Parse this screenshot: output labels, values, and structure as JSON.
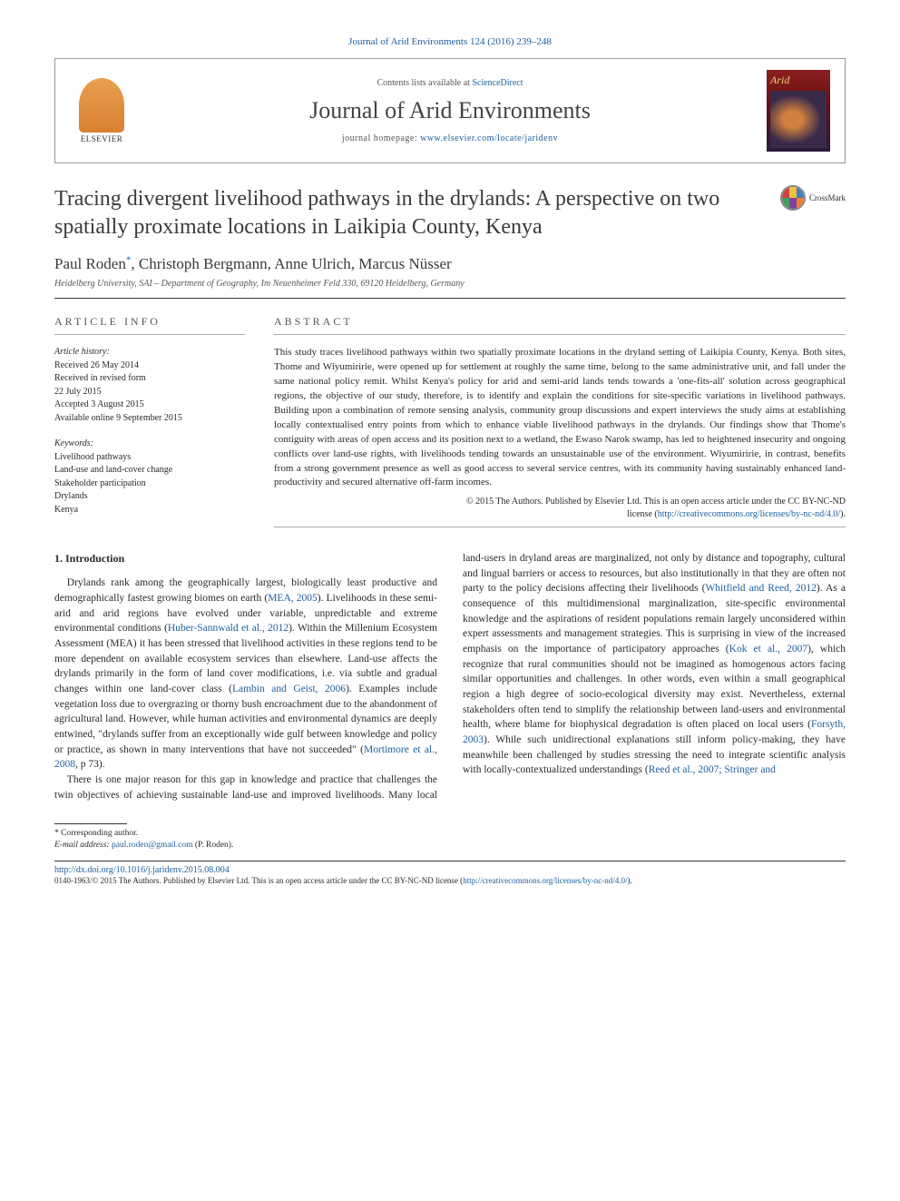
{
  "journal_ref": "Journal of Arid Environments 124 (2016) 239–248",
  "header": {
    "contents_prefix": "Contents lists available at ",
    "contents_link": "ScienceDirect",
    "journal_name": "Journal of Arid Environments",
    "homepage_prefix": "journal homepage: ",
    "homepage_url": "www.elsevier.com/locate/jaridenv",
    "publisher": "ELSEVIER",
    "cover_title": "Arid"
  },
  "article": {
    "title": "Tracing divergent livelihood pathways in the drylands: A perspective on two spatially proximate locations in Laikipia County, Kenya",
    "crossmark_label": "CrossMark",
    "authors": "Paul Roden*, Christoph Bergmann, Anne Ulrich, Marcus Nüsser",
    "affiliation": "Heidelberg University, SAI – Department of Geography, Im Neuenheimer Feld 330, 69120 Heidelberg, Germany"
  },
  "info": {
    "heading": "ARTICLE INFO",
    "history_label": "Article history:",
    "history_lines": [
      "Received 26 May 2014",
      "Received in revised form",
      "22 July 2015",
      "Accepted 3 August 2015",
      "Available online 9 September 2015"
    ],
    "keywords_label": "Keywords:",
    "keywords": [
      "Livelihood pathways",
      "Land-use and land-cover change",
      "Stakeholder participation",
      "Drylands",
      "Kenya"
    ]
  },
  "abstract": {
    "heading": "ABSTRACT",
    "text": "This study traces livelihood pathways within two spatially proximate locations in the dryland setting of Laikipia County, Kenya. Both sites, Thome and Wiyumiririe, were opened up for settlement at roughly the same time, belong to the same administrative unit, and fall under the same national policy remit. Whilst Kenya's policy for arid and semi-arid lands tends towards a 'one-fits-all' solution across geographical regions, the objective of our study, therefore, is to identify and explain the conditions for site-specific variations in livelihood pathways. Building upon a combination of remote sensing analysis, community group discussions and expert interviews the study aims at establishing locally contextualised entry points from which to enhance viable livelihood pathways in the drylands. Our findings show that Thome's contiguity with areas of open access and its position next to a wetland, the Ewaso Narok swamp, has led to heightened insecurity and ongoing conflicts over land-use rights, with livelihoods tending towards an unsustainable use of the environment. Wiyumiririe, in contrast, benefits from a strong government presence as well as good access to several service centres, with its community having sustainably enhanced land-productivity and secured alternative off-farm incomes.",
    "copyright_line1": "© 2015 The Authors. Published by Elsevier Ltd. This is an open access article under the CC BY-NC-ND",
    "copyright_line2_prefix": "license (",
    "copyright_url": "http://creativecommons.org/licenses/by-nc-nd/4.0/",
    "copyright_line2_suffix": ")."
  },
  "body": {
    "section_heading": "1. Introduction",
    "p1_a": "Drylands rank among the geographically largest, biologically least productive and demographically fastest growing biomes on earth (",
    "p1_c1": "MEA, 2005",
    "p1_b": "). Livelihoods in these semi-arid and arid regions have evolved under variable, unpredictable and extreme environmental conditions (",
    "p1_c2": "Huber-Sannwald et al., 2012",
    "p1_c": "). Within the Millenium Ecosystem Assessment (MEA) it has been stressed that livelihood activities in these regions tend to be more dependent on available ecosystem services than elsewhere. Land-use affects the drylands primarily in the form of land cover modifications, i.e. via subtle and gradual changes within one land-cover class (",
    "p1_c3": "Lambin and Geist, 2006",
    "p1_d": "). Examples include vegetation loss due to overgrazing or thorny bush encroachment due to the abandonment of agricultural land. However, while human activities and environmental dynamics are deeply entwined, \"drylands suffer from an exceptionally wide gulf between knowledge and policy or practice, as shown in many interventions that have not succeeded\" (",
    "p1_c4": "Mortimore et al., 2008",
    "p1_e": ", p 73).",
    "p2_a": "There is one major reason for this gap in knowledge and practice that challenges the twin objectives of achieving sustainable land-use and improved livelihoods. Many local land-users in dryland areas are marginalized, not only by distance and topography, cultural and lingual barriers or access to resources, but also institutionally in that they are often not party to the policy decisions affecting their livelihoods (",
    "p2_c1": "Whitfield and Reed, 2012",
    "p2_b": "). As a consequence of this multidimensional marginalization, site-specific environmental knowledge and the aspirations of resident populations remain largely unconsidered within expert assessments and management strategies. This is surprising in view of the increased emphasis on the importance of participatory approaches (",
    "p2_c2": "Kok et al., 2007",
    "p2_c": "), which recognize that rural communities should not be imagined as homogenous actors facing similar opportunities and challenges. In other words, even within a small geographical region a high degree of socio-ecological diversity may exist. Nevertheless, external stakeholders often tend to simplify the relationship between land-users and environmental health, where blame for biophysical degradation is often placed on local users (",
    "p2_c3": "Forsyth, 2003",
    "p2_d": "). While such unidirectional explanations still inform policy-making, they have meanwhile been challenged by studies stressing the need to integrate scientific analysis with locally-contextualized understandings (",
    "p2_c4": "Reed et al., 2007; Stringer and"
  },
  "footnotes": {
    "corresponding": "* Corresponding author.",
    "email_label": "E-mail address: ",
    "email": "paul.roden@gmail.com",
    "email_suffix": " (P. Roden)."
  },
  "footer": {
    "doi": "http://dx.doi.org/10.1016/j.jaridenv.2015.08.004",
    "license_prefix": "0140-1963/© 2015 The Authors. Published by Elsevier Ltd. This is an open access article under the CC BY-NC-ND license (",
    "license_url": "http://creativecommons.org/licenses/by-nc-nd/4.0/",
    "license_suffix": ")."
  },
  "colors": {
    "link": "#2060a0",
    "text": "#2a2a2a",
    "heading": "#3a3a3a",
    "muted": "#555"
  }
}
